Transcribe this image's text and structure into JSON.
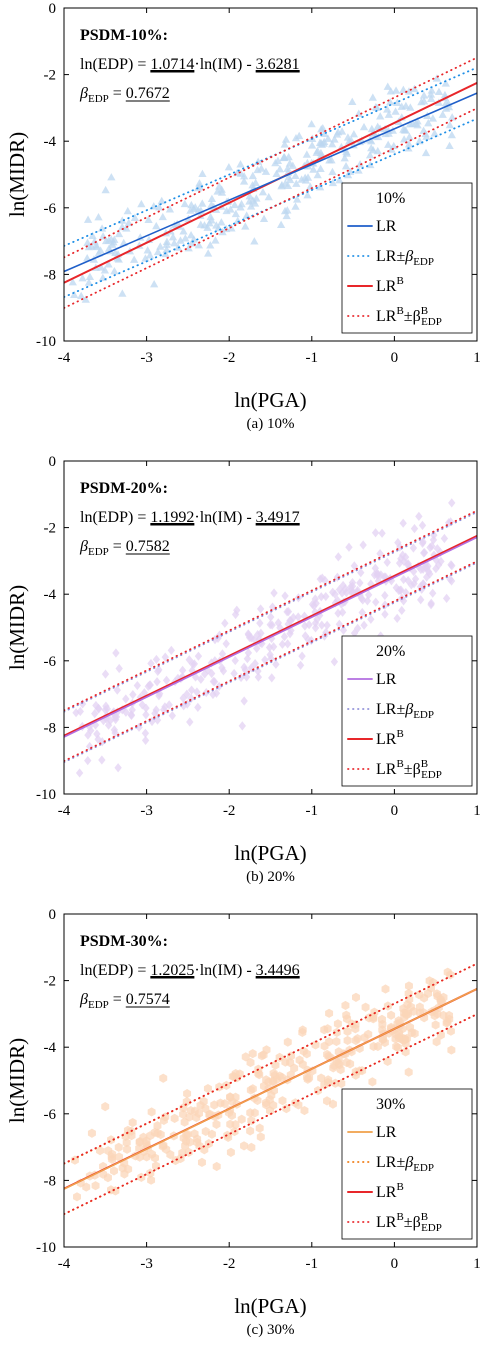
{
  "chart_data": [
    {
      "type": "scatter",
      "caption": "(a)  10%",
      "xlabel": "ln(PGA)",
      "ylabel": "ln(MIDR)",
      "xlim": [
        -4,
        1
      ],
      "ylim": [
        -10,
        0
      ],
      "xticks": [
        "-4",
        "-3",
        "-2",
        "-1",
        "0",
        "1"
      ],
      "yticks": [
        "-10",
        "-8",
        "-6",
        "-4",
        "-2",
        "0"
      ],
      "annotation": {
        "title": "PSDM-10%:",
        "eq_prefix": "ln(EDP) = ",
        "slope": "1.0714",
        "eq_mid": "·ln(IM) - ",
        "intercept": "3.6281",
        "beta_symbol": "β",
        "beta_sub": "EDP",
        "beta_eq": " = ",
        "beta": "0.7672"
      },
      "legend": {
        "title": "10%",
        "lr": "LR",
        "lr_band": "LR±β",
        "lr_band_sub": "EDP",
        "lrb": "LR",
        "lrb_sup": "B",
        "lrb_band": "LR",
        "lrb_band_sup": "B",
        "lrb_band_pm": "±β",
        "lrb_band_sup2": "B",
        "lrb_band_sub": "EDP"
      },
      "colors": {
        "scatter": "#bcd7f0",
        "lr": "#1f5fc9",
        "lrb": "#e8262a",
        "band": "#1f8fe6",
        "bandb": "#e8262a"
      },
      "marker": "triangle",
      "series": [
        {
          "values_fn": "lr",
          "slope": 1.0714,
          "intercept": -3.6281
        },
        {
          "values_fn": "lrb",
          "slope": 1.2,
          "intercept": -3.45
        }
      ],
      "beta_b": 0.76,
      "seed": 11
    },
    {
      "type": "scatter",
      "caption": "(b)  20%",
      "xlabel": "ln(PGA)",
      "ylabel": "ln(MIDR)",
      "xlim": [
        -4,
        1
      ],
      "ylim": [
        -10,
        0
      ],
      "xticks": [
        "-4",
        "-3",
        "-2",
        "-1",
        "0",
        "1"
      ],
      "yticks": [
        "-10",
        "-8",
        "-6",
        "-4",
        "-2",
        "0"
      ],
      "annotation": {
        "title": "PSDM-20%:",
        "eq_prefix": "ln(EDP) = ",
        "slope": "1.1992",
        "eq_mid": "·ln(IM) - ",
        "intercept": "3.4917",
        "beta_symbol": "β",
        "beta_sub": "EDP",
        "beta_eq": " = ",
        "beta": "0.7582"
      },
      "legend": {
        "title": "20%",
        "lr": "LR",
        "lr_band": "LR±β",
        "lr_band_sub": "EDP",
        "lrb": "LR",
        "lrb_sup": "B",
        "lrb_band": "LR",
        "lrb_band_sup": "B",
        "lrb_band_pm": "±β",
        "lrb_band_sup2": "B",
        "lrb_band_sub": "EDP"
      },
      "colors": {
        "scatter": "#e3d2f3",
        "lr": "#b36ee0",
        "lrb": "#e8262a",
        "band": "#8f8fd8",
        "bandb": "#e8262a"
      },
      "marker": "diamond",
      "series": [
        {
          "values_fn": "lr",
          "slope": 1.1992,
          "intercept": -3.4917
        },
        {
          "values_fn": "lrb",
          "slope": 1.2,
          "intercept": -3.45
        }
      ],
      "beta_b": 0.76,
      "seed": 23
    },
    {
      "type": "scatter",
      "caption": "(c)  30%",
      "xlabel": "ln(PGA)",
      "ylabel": "ln(MIDR)",
      "xlim": [
        -4,
        1
      ],
      "ylim": [
        -10,
        0
      ],
      "xticks": [
        "-4",
        "-3",
        "-2",
        "-1",
        "0",
        "1"
      ],
      "yticks": [
        "-10",
        "-8",
        "-6",
        "-4",
        "-2",
        "0"
      ],
      "annotation": {
        "title": "PSDM-30%:",
        "eq_prefix": "ln(EDP) = ",
        "slope": "1.2025",
        "eq_mid": "·ln(IM) - ",
        "intercept": "3.4496",
        "beta_symbol": "β",
        "beta_sub": "EDP",
        "beta_eq": " = ",
        "beta": "0.7574"
      },
      "legend": {
        "title": "30%",
        "lr": "LR",
        "lr_band": "LR±β",
        "lr_band_sub": "EDP",
        "lrb": "LR",
        "lrb_sup": "B",
        "lrb_band": "LR",
        "lrb_band_sup": "B",
        "lrb_band_pm": "±β",
        "lrb_band_sup2": "B",
        "lrb_band_sub": "EDP"
      },
      "colors": {
        "scatter": "#fbd5b8",
        "lr": "#f0a04a",
        "lrb": "#e8262a",
        "band": "#f07a10",
        "bandb": "#e8262a"
      },
      "marker": "hexagon",
      "series": [
        {
          "values_fn": "lr",
          "slope": 1.2025,
          "intercept": -3.4496
        },
        {
          "values_fn": "lrb",
          "slope": 1.2,
          "intercept": -3.45
        }
      ],
      "beta_b": 0.76,
      "seed": 37
    }
  ]
}
